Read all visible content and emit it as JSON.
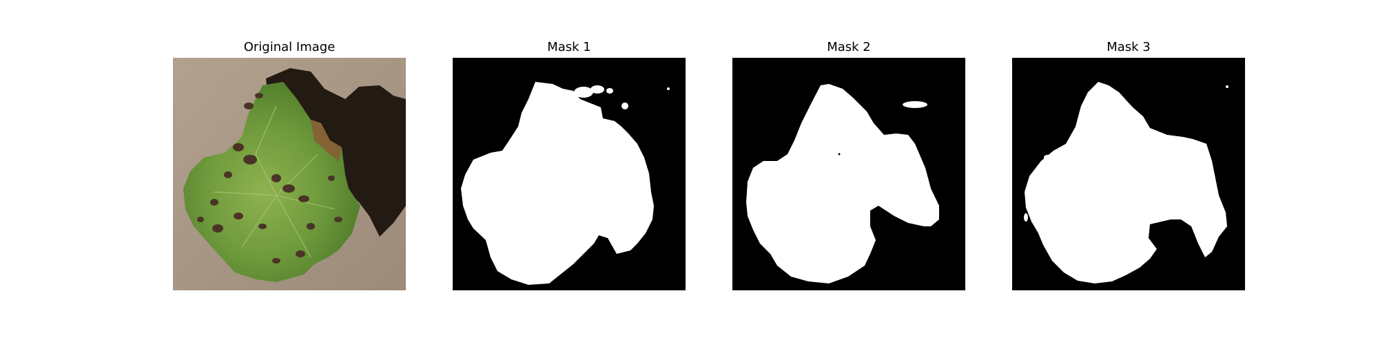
{
  "figure": {
    "panels": [
      {
        "title": "Original Image"
      },
      {
        "title": "Mask 1"
      },
      {
        "title": "Mask 2"
      },
      {
        "title": "Mask 3"
      }
    ]
  },
  "colors": {
    "background": "#ffffff",
    "mask_background": "#000000",
    "mask_foreground": "#ffffff",
    "photo_ground": "#a69584",
    "leaf_green": "#6f9a3c",
    "leaf_shadow": "#231a14",
    "lesion_brown": "#4a3426"
  }
}
